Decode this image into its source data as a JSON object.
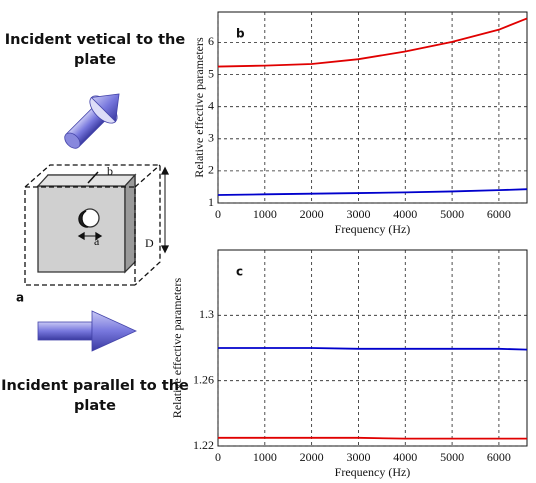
{
  "diagram": {
    "top_caption": "Incident vetical to the plate",
    "bottom_caption": "Incident parallel to the plate",
    "panel_label": "a",
    "dimension_labels": [
      "b",
      "D",
      "a"
    ]
  },
  "chart_data": [
    {
      "type": "line",
      "annotation": "b",
      "xlabel": "Frequency (Hz)",
      "ylabel": "Relative effective parameters",
      "x": [
        0,
        1000,
        2000,
        3000,
        4000,
        5000,
        6000,
        6600
      ],
      "series": [
        {
          "color": "#e00000",
          "values": [
            5.25,
            5.28,
            5.33,
            5.48,
            5.72,
            6.02,
            6.4,
            6.75
          ]
        },
        {
          "color": "#0000cc",
          "values": [
            1.25,
            1.27,
            1.29,
            1.31,
            1.33,
            1.36,
            1.4,
            1.43
          ]
        }
      ],
      "xlim": [
        0,
        6600
      ],
      "ylim": [
        1,
        6.95
      ],
      "xticks": [
        0,
        1000,
        2000,
        3000,
        4000,
        5000,
        6000
      ],
      "yticks": [
        1,
        2,
        3,
        4,
        5,
        6
      ],
      "grid": true
    },
    {
      "type": "line",
      "annotation": "c",
      "xlabel": "Frequency (Hz)",
      "ylabel": "Relative effective parameters",
      "x": [
        0,
        1000,
        2000,
        3000,
        4000,
        5000,
        6000,
        6600
      ],
      "series": [
        {
          "color": "#0000cc",
          "values": [
            1.28,
            1.28,
            1.28,
            1.2795,
            1.2795,
            1.2795,
            1.2795,
            1.279
          ]
        },
        {
          "color": "#e00000",
          "values": [
            1.225,
            1.225,
            1.225,
            1.225,
            1.2245,
            1.2245,
            1.2245,
            1.2245
          ]
        }
      ],
      "xlim": [
        0,
        6600
      ],
      "ylim": [
        1.22,
        1.34
      ],
      "xticks": [
        0,
        1000,
        2000,
        3000,
        4000,
        5000,
        6000
      ],
      "yticks": [
        1.22,
        1.26,
        1.3
      ],
      "grid": true
    }
  ]
}
